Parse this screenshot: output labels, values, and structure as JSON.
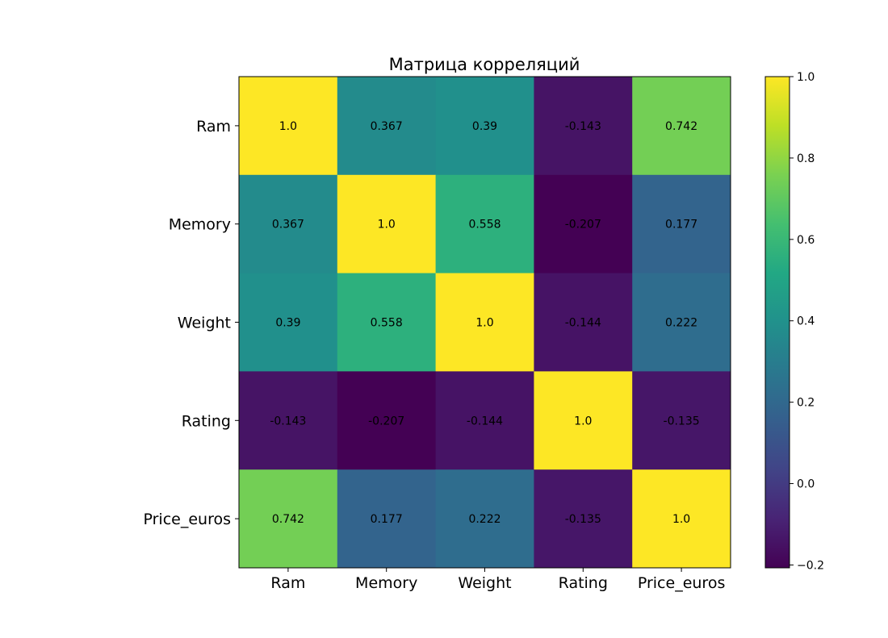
{
  "chart_data": {
    "type": "heatmap",
    "title": "Матрица корреляций",
    "xlabel": "",
    "ylabel": "",
    "x_categories": [
      "Ram",
      "Memory",
      "Weight",
      "Rating",
      "Price_euros"
    ],
    "y_categories": [
      "Ram",
      "Memory",
      "Weight",
      "Rating",
      "Price_euros"
    ],
    "values": [
      [
        1.0,
        0.367,
        0.39,
        -0.143,
        0.742
      ],
      [
        0.367,
        1.0,
        0.558,
        -0.207,
        0.177
      ],
      [
        0.39,
        0.558,
        1.0,
        -0.144,
        0.222
      ],
      [
        -0.143,
        -0.207,
        -0.144,
        1.0,
        -0.135
      ],
      [
        0.742,
        0.177,
        0.222,
        -0.135,
        1.0
      ]
    ],
    "cell_labels": [
      [
        "1.0",
        "0.367",
        "0.39",
        "-0.143",
        "0.742"
      ],
      [
        "0.367",
        "1.0",
        "0.558",
        "-0.207",
        "0.177"
      ],
      [
        "0.39",
        "0.558",
        "1.0",
        "-0.144",
        "0.222"
      ],
      [
        "-0.143",
        "-0.207",
        "-0.144",
        "1.0",
        "-0.135"
      ],
      [
        "0.742",
        "0.177",
        "0.222",
        "-0.135",
        "1.0"
      ]
    ],
    "colormap": "viridis",
    "colorbar": {
      "range": [
        -0.207,
        1.0
      ],
      "ticks": [
        -0.2,
        0.0,
        0.2,
        0.4,
        0.6,
        0.8,
        1.0
      ],
      "tick_labels": [
        "−0.2",
        "0.0",
        "0.2",
        "0.4",
        "0.6",
        "0.8",
        "1.0"
      ]
    },
    "grid": false
  }
}
